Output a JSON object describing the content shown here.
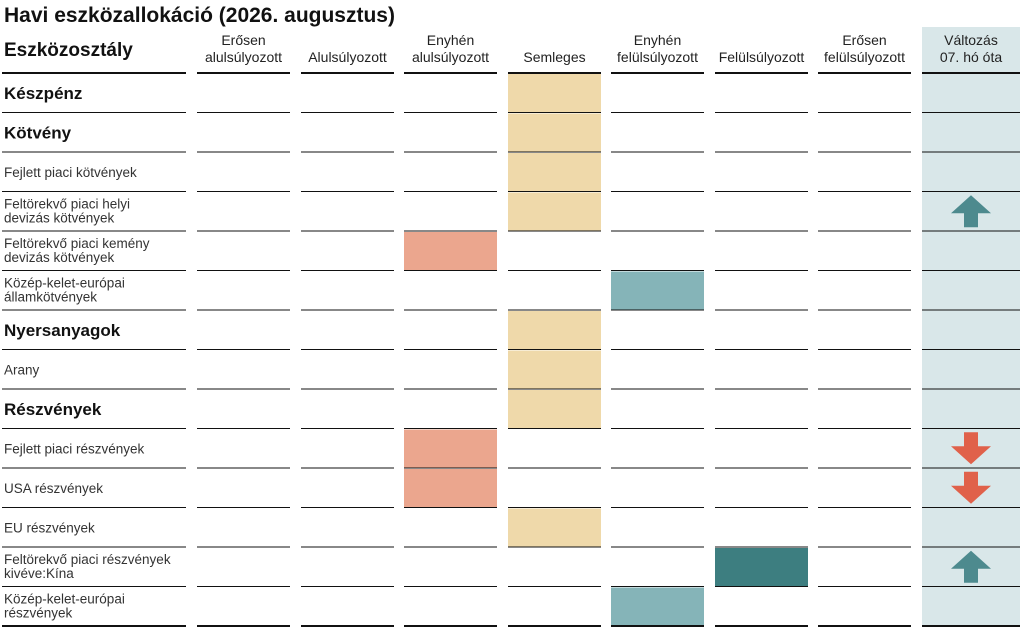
{
  "chart_data": {
    "type": "table",
    "title": "Havi eszközallokáció (2026. augusztus)",
    "row_header": "Eszközosztály",
    "columns": [
      "Erősen\nalulsúlyozott",
      "Alulsúlyozott",
      "Enyhén\nalulsúlyozott",
      "Semleges",
      "Enyhén\nfelülsúlyozott",
      "Felülsúlyozott",
      "Erősen\nfelülsúlyozott"
    ],
    "change_header": "Változás\n07. hó óta",
    "rows": [
      {
        "label": "Készpénz",
        "bold": true,
        "position": 4,
        "change": ""
      },
      {
        "label": "Kötvény",
        "bold": true,
        "position": 4,
        "change": ""
      },
      {
        "label": "Fejlett piaci kötvények",
        "bold": false,
        "position": 4,
        "change": ""
      },
      {
        "label": "Feltörekvő piaci helyi\ndevizás kötvények",
        "bold": false,
        "position": 4,
        "change": "up"
      },
      {
        "label": "Feltörekvő piaci kemény\ndevizás kötvények",
        "bold": false,
        "position": 3,
        "change": ""
      },
      {
        "label": "Közép-kelet-európai\nállamkötvények",
        "bold": false,
        "position": 5,
        "change": ""
      },
      {
        "label": "Nyersanyagok",
        "bold": true,
        "position": 4,
        "change": ""
      },
      {
        "label": "Arany",
        "bold": false,
        "position": 4,
        "change": ""
      },
      {
        "label": "Részvények",
        "bold": true,
        "position": 4,
        "change": ""
      },
      {
        "label": "Fejlett piaci részvények",
        "bold": false,
        "position": 3,
        "change": "down"
      },
      {
        "label": "USA részvények",
        "bold": false,
        "position": 3,
        "change": "down"
      },
      {
        "label": "EU részvények",
        "bold": false,
        "position": 4,
        "change": ""
      },
      {
        "label": "Feltörekvő piaci részvények\nkivéve:Kína",
        "bold": false,
        "position": 6,
        "change": "up"
      },
      {
        "label": "Közép-kelet-európai\nrészvények",
        "bold": false,
        "position": 5,
        "change": ""
      }
    ],
    "colors": {
      "underweight": "#eba68e",
      "neutral": "#efd9aa",
      "slight_overweight": "#85b4b8",
      "overweight": "#3d7e80",
      "change_column_bg": "#d9e7e9",
      "arrow_up": "#4d8a8e",
      "arrow_down": "#e0614a",
      "rule": "#111111"
    }
  }
}
